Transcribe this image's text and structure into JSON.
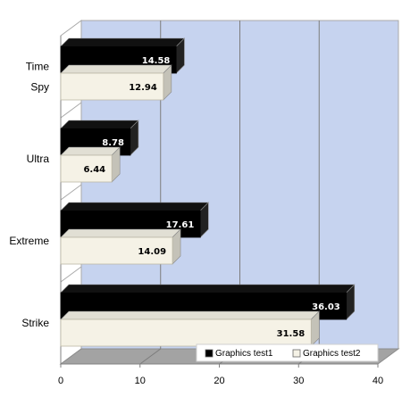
{
  "chart_data": {
    "type": "bar",
    "orientation": "horizontal",
    "style": "3d",
    "categories": [
      {
        "label_lines": [
          "Time",
          "Spy"
        ]
      },
      {
        "label_lines": [
          "Ultra"
        ]
      },
      {
        "label_lines": [
          "Extreme"
        ]
      },
      {
        "label_lines": [
          "Strike"
        ]
      }
    ],
    "series": [
      {
        "name": "Graphics test1",
        "color": "#000000",
        "label_color": "#ffffff",
        "values": [
          14.58,
          8.78,
          17.61,
          36.03
        ]
      },
      {
        "name": "Graphics test2",
        "color": "#f5f2e6",
        "label_color": "#000000",
        "values": [
          12.94,
          6.44,
          14.09,
          31.58
        ]
      }
    ],
    "xlim": [
      0,
      40
    ],
    "x_ticks": [
      "0",
      "10",
      "20",
      "30",
      "40"
    ],
    "grid": true,
    "plot_background": "#c6d3ef",
    "legend": {
      "position": "bottom-right inside plot"
    }
  }
}
